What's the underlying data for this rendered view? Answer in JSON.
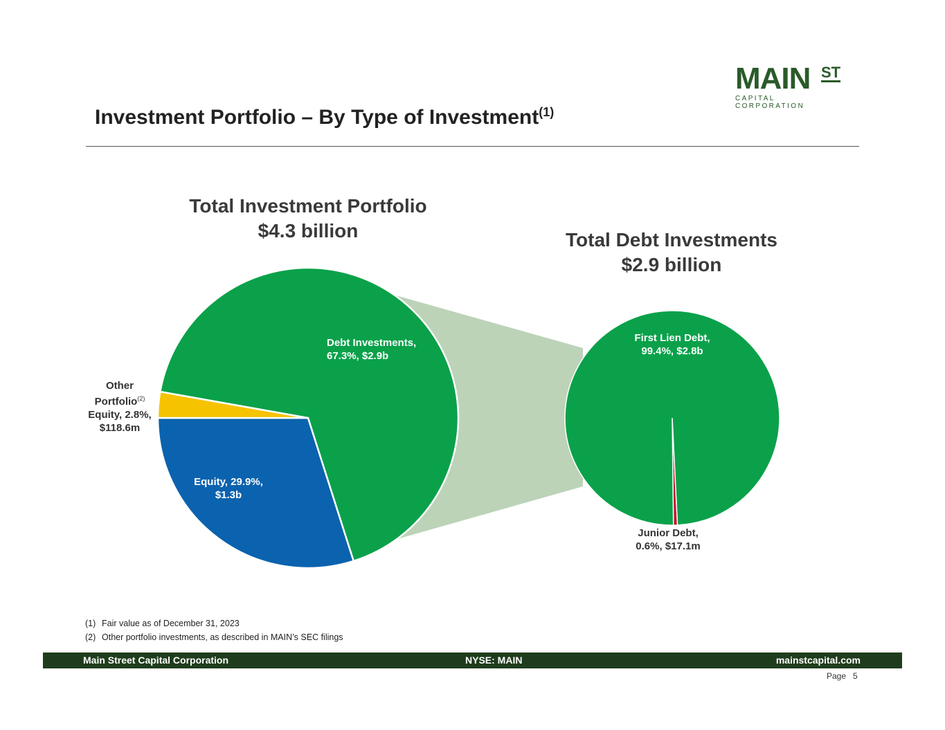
{
  "logo": {
    "main": "MAIN",
    "st": "ST",
    "sub": "CAPITAL CORPORATION"
  },
  "title": "Investment Portfolio – By Type of Investment",
  "title_sup": "(1)",
  "chart_data": [
    {
      "type": "pie",
      "title": "Total Investment Portfolio",
      "subtitle": "$4.3 billion",
      "slices": [
        {
          "label": "Equity",
          "percent": 29.9,
          "value": "$1.3b",
          "color": "#0b62ae"
        },
        {
          "label": "Other Portfolio Equity",
          "footnote": "(2)",
          "percent": 2.8,
          "value": "$118.6m",
          "color": "#f5c300"
        },
        {
          "label": "Debt Investments",
          "percent": 67.3,
          "value": "$2.9b",
          "color": "#0aa14a"
        }
      ]
    },
    {
      "type": "pie",
      "title": "Total Debt Investments",
      "subtitle": "$2.9 billion",
      "slices": [
        {
          "label": "Junior Debt",
          "percent": 0.6,
          "value": "$17.1m",
          "color": "#c8102e"
        },
        {
          "label": "First Lien Debt",
          "percent": 99.4,
          "value": "$2.8b",
          "color": "#0aa14a"
        }
      ]
    }
  ],
  "labels": {
    "debt": [
      "Debt Investments,",
      "67.3%, $2.9b"
    ],
    "equity": [
      "Equity, 29.9%,",
      "$1.3b"
    ],
    "other": [
      "Other",
      "Portfolio",
      "Equity, 2.8%,",
      "$118.6m"
    ],
    "other_sup": "(2)",
    "first": [
      "First Lien Debt,",
      "99.4%, $2.8b"
    ],
    "junior": [
      "Junior Debt,",
      "0.6%, $17.1m"
    ]
  },
  "connector_color": "#bcd3b8",
  "notes": [
    {
      "n": "(1)",
      "t": "Fair value as of December 31, 2023"
    },
    {
      "n": "(2)",
      "t": "Other portfolio investments, as described in MAIN’s SEC filings"
    }
  ],
  "footer": {
    "left": "Main Street Capital Corporation",
    "center": "NYSE: MAIN",
    "right": "mainstcapital.com",
    "bg": "#1f3d1c"
  },
  "page": {
    "label": "Page",
    "number": "5"
  }
}
